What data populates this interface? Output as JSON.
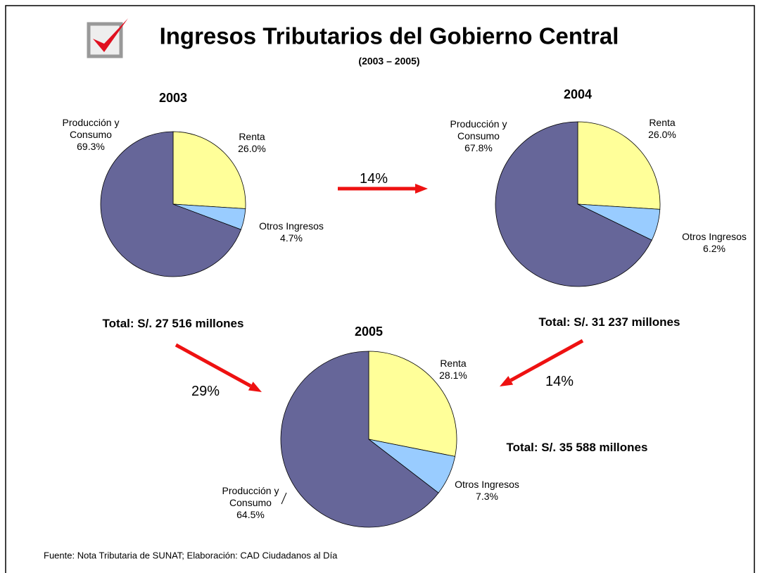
{
  "header": {
    "title": "Ingresos Tributarios del Gobierno Central",
    "subtitle": "(2003 – 2005)"
  },
  "chart_data": [
    {
      "type": "pie",
      "title": "2003",
      "categories": [
        "Renta",
        "Otros Ingresos",
        "Producción y Consumo"
      ],
      "values": [
        26.0,
        4.7,
        69.3
      ],
      "value_labels": [
        "26.0%",
        "4.7%",
        "69.3%"
      ],
      "colors": [
        "#ffff99",
        "#99ccff",
        "#666699"
      ],
      "total": "Total: S/. 27 516 millones"
    },
    {
      "type": "pie",
      "title": "2004",
      "categories": [
        "Renta",
        "Otros Ingresos",
        "Producción y Consumo"
      ],
      "values": [
        26.0,
        6.2,
        67.8
      ],
      "value_labels": [
        "26.0%",
        "6.2%",
        "67.8%"
      ],
      "colors": [
        "#ffff99",
        "#99ccff",
        "#666699"
      ],
      "total": "Total: S/. 31 237 millones"
    },
    {
      "type": "pie",
      "title": "2005",
      "categories": [
        "Renta",
        "Otros Ingresos",
        "Producción y Consumo"
      ],
      "values": [
        28.1,
        7.3,
        64.5
      ],
      "value_labels": [
        "28.1%",
        "7.3%",
        "64.5%"
      ],
      "colors": [
        "#ffff99",
        "#99ccff",
        "#666699"
      ],
      "total": "Total: S/. 35 588 millones"
    }
  ],
  "growth": [
    "14%",
    "29%",
    "14%"
  ],
  "footer": "Fuente: Nota Tributaria de SUNAT; Elaboración: CAD Ciudadanos al Día"
}
